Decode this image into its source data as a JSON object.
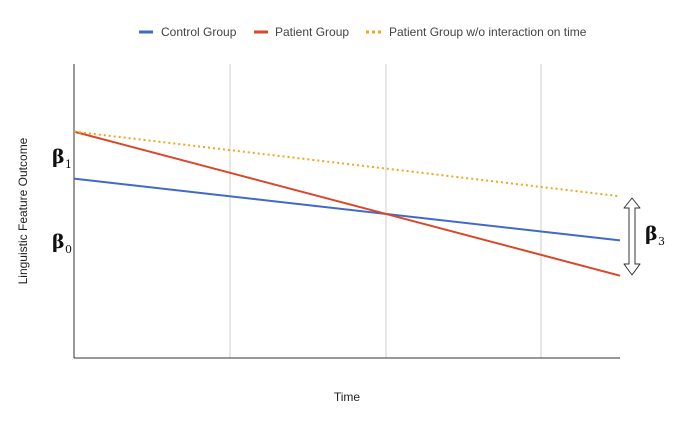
{
  "chart_data": {
    "type": "line",
    "title": "",
    "xlabel": "Time",
    "ylabel": "Linguistic Feature Outcome",
    "x": [
      0,
      1
    ],
    "xlim": [
      0,
      1
    ],
    "ylim": [
      0,
      1
    ],
    "grid": "vertical",
    "legend_position": "top",
    "series": [
      {
        "name": "Control Group",
        "values": [
          0.61,
          0.4
        ],
        "color": "#4169c8",
        "style": "solid"
      },
      {
        "name": "Patient Group",
        "values": [
          0.77,
          0.28
        ],
        "color": "#db4528",
        "style": "solid"
      },
      {
        "name": "Patient Group w/o interaction on time",
        "values": [
          0.77,
          0.55
        ],
        "color": "#f2a41c",
        "style": "dotted"
      }
    ],
    "annotations": {
      "beta1": {
        "symbol": "β",
        "sub": "1"
      },
      "beta0": {
        "symbol": "β",
        "sub": "0"
      },
      "beta3": {
        "symbol": "β",
        "sub": "3"
      }
    }
  }
}
